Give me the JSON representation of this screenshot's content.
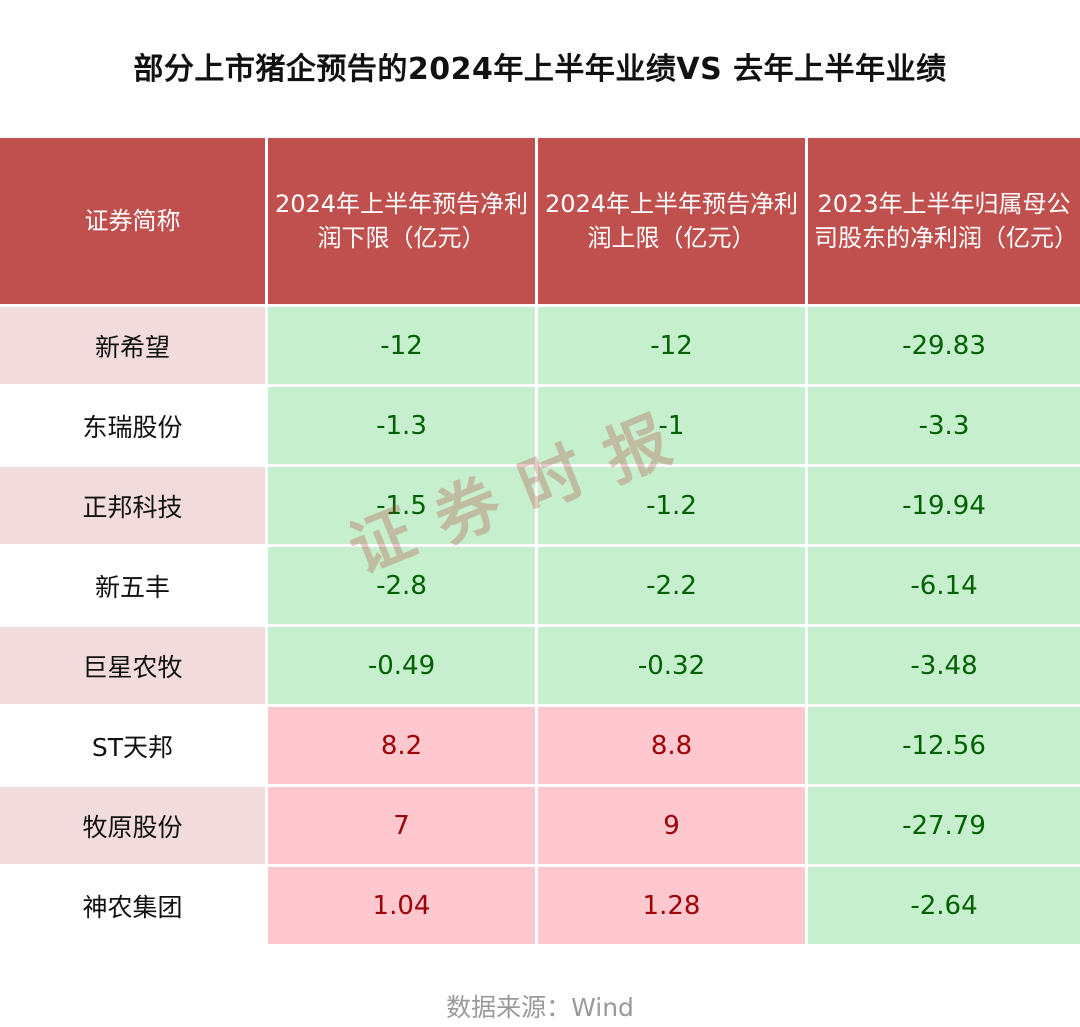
{
  "title": "部分上市猪企预告的2024年上半年业绩VS 去年上半年业绩",
  "table": {
    "headers": [
      "证券简称",
      "2024年上半年预告净利润下限（亿元）",
      "2024年上半年预告净利润上限（亿元）",
      "2023年上半年归属母公司股东的净利润（亿元）"
    ],
    "rows": [
      {
        "name": "新希望",
        "low": "-12",
        "high": "-12",
        "prev": "-29.83"
      },
      {
        "name": "东瑞股份",
        "low": "-1.3",
        "high": "-1",
        "prev": "-3.3"
      },
      {
        "name": "正邦科技",
        "low": "-1.5",
        "high": "-1.2",
        "prev": "-19.94"
      },
      {
        "name": "新五丰",
        "low": "-2.8",
        "high": "-2.2",
        "prev": "-6.14"
      },
      {
        "name": "巨星农牧",
        "low": "-0.49",
        "high": "-0.32",
        "prev": "-3.48"
      },
      {
        "name": "ST天邦",
        "low": "8.2",
        "high": "8.8",
        "prev": "-12.56"
      },
      {
        "name": "牧原股份",
        "low": "7",
        "high": "9",
        "prev": "-27.79"
      },
      {
        "name": "神农集团",
        "low": "1.04",
        "high": "1.28",
        "prev": "-2.64"
      }
    ]
  },
  "watermark": "证券时报",
  "source": "数据来源：Wind",
  "colors": {
    "header_bg": "#c0504d",
    "negative_bg": "#c6efce",
    "negative_text": "#006100",
    "positive_bg": "#ffc7ce",
    "positive_text": "#9c0006",
    "name_alt_bg": "#f2dcdb"
  }
}
